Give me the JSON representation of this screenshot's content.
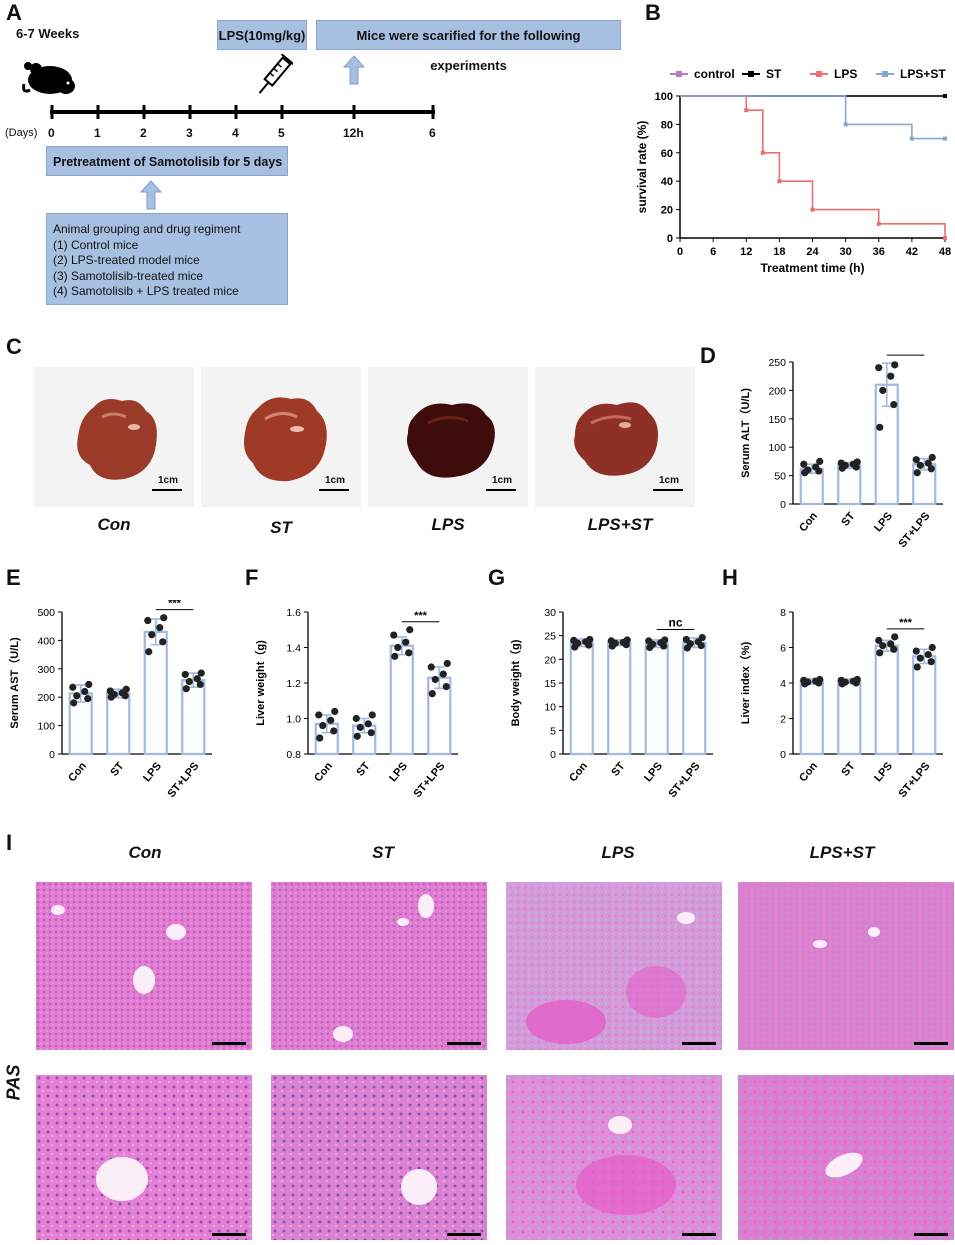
{
  "panels": {
    "A": "A",
    "B": "B",
    "C": "C",
    "D": "D",
    "E": "E",
    "F": "F",
    "G": "G",
    "H": "H",
    "I": "I"
  },
  "timeline": {
    "age": "6-7 Weeks",
    "lps_box": "LPS(10mg/kg)",
    "sacrifice_box": "Mice were scarified for the following experiments",
    "days_label": "(Days)",
    "ticks": [
      "0",
      "1",
      "2",
      "3",
      "4",
      "5",
      "12h",
      "6"
    ],
    "pretreatment": "Pretreatment of Samotolisib for 5 days",
    "grouping_title": "Animal grouping and drug regiment",
    "groups": [
      "(1)   Control mice",
      "(2)   LPS-treated model mice",
      "(3)   Samotolisib-treated mice",
      "(4)   Samotolisib + LPS treated mice"
    ]
  },
  "survival": {
    "legend": [
      "control",
      "ST",
      "LPS",
      "LPS+ST"
    ],
    "ylabel": "survival rate (%)",
    "xlabel": "Treatment time (h)",
    "yticks": [
      "0",
      "20",
      "40",
      "60",
      "80",
      "100"
    ],
    "xticks": [
      "0",
      "6",
      "12",
      "18",
      "24",
      "30",
      "36",
      "42",
      "48"
    ]
  },
  "liver_photos": {
    "labels": [
      "Con",
      "ST",
      "LPS",
      "LPS+ST"
    ],
    "scale": "1cm"
  },
  "pas": {
    "labels": [
      "Con",
      "ST",
      "LPS",
      "LPS+ST"
    ],
    "stain": "PAS"
  },
  "colors": {
    "box_blue": "#a7bfe0",
    "bar_blue": "#9fb9e0",
    "control": "#b37cc9",
    "st": "#000000",
    "lps": "#ec6f6f",
    "lps_st": "#86a7d3",
    "pas_pink": "#e27ad1"
  },
  "chart_data": [
    {
      "type": "line",
      "title": "",
      "xlabel": "Treatment time (h)",
      "ylabel": "survival rate (%)",
      "xlim": [
        0,
        48
      ],
      "ylim": [
        0,
        100
      ],
      "legend_position": "top",
      "series": [
        {
          "name": "control",
          "step": true,
          "x": [
            0,
            48
          ],
          "y": [
            100,
            100
          ]
        },
        {
          "name": "ST",
          "step": true,
          "x": [
            0,
            48
          ],
          "y": [
            100,
            100
          ]
        },
        {
          "name": "LPS",
          "step": true,
          "x": [
            0,
            12,
            15,
            18,
            24,
            36,
            48
          ],
          "y": [
            100,
            90,
            60,
            40,
            20,
            10,
            0
          ]
        },
        {
          "name": "LPS+ST",
          "step": true,
          "x": [
            0,
            30,
            42,
            48
          ],
          "y": [
            100,
            80,
            70,
            70
          ]
        }
      ]
    },
    {
      "type": "bar",
      "ylabel": "Serum ALT（U/L)",
      "ylim": [
        0,
        250
      ],
      "yticks": [
        "0",
        "50",
        "100",
        "150",
        "200",
        "250"
      ],
      "categories": [
        "Con",
        "ST",
        "LPS",
        "ST+LPS"
      ],
      "values": [
        62,
        68,
        210,
        70
      ],
      "errors": [
        8,
        5,
        38,
        10
      ],
      "points": [
        [
          55,
          58,
          60,
          65,
          70,
          75
        ],
        [
          63,
          65,
          68,
          70,
          72,
          74
        ],
        [
          135,
          175,
          200,
          225,
          240,
          245
        ],
        [
          55,
          62,
          68,
          72,
          78,
          82
        ]
      ],
      "significance": {
        "between": [
          2,
          3
        ],
        "label": "***"
      }
    },
    {
      "type": "bar",
      "ylabel": "Serum AST（U/L)",
      "ylim": [
        0,
        500
      ],
      "yticks": [
        "0",
        "100",
        "200",
        "300",
        "400",
        "500"
      ],
      "categories": [
        "Con",
        "ST",
        "LPS",
        "ST+LPS"
      ],
      "values": [
        213,
        213,
        430,
        260
      ],
      "errors": [
        30,
        15,
        45,
        25
      ],
      "points": [
        [
          180,
          195,
          205,
          220,
          235,
          245
        ],
        [
          200,
          205,
          210,
          215,
          222,
          228
        ],
        [
          360,
          395,
          420,
          445,
          470,
          480
        ],
        [
          230,
          245,
          255,
          265,
          280,
          285
        ]
      ],
      "significance": {
        "between": [
          2,
          3
        ],
        "label": "***"
      }
    },
    {
      "type": "bar",
      "ylabel": "Liver weight（g)",
      "ylim": [
        0.8,
        1.6
      ],
      "yticks": [
        "0.8",
        "1.0",
        "1.2",
        "1.4",
        "1.6"
      ],
      "categories": [
        "Con",
        "ST",
        "LPS",
        "ST+LPS"
      ],
      "values": [
        0.97,
        0.96,
        1.41,
        1.23
      ],
      "errors": [
        0.05,
        0.04,
        0.05,
        0.06
      ],
      "points": [
        [
          0.89,
          0.93,
          0.96,
          0.99,
          1.02,
          1.04
        ],
        [
          0.9,
          0.92,
          0.95,
          0.97,
          1.0,
          1.02
        ],
        [
          1.35,
          1.37,
          1.4,
          1.43,
          1.47,
          1.5
        ],
        [
          1.14,
          1.18,
          1.22,
          1.25,
          1.29,
          1.31
        ]
      ],
      "significance": {
        "between": [
          2,
          3
        ],
        "label": "***"
      }
    },
    {
      "type": "bar",
      "ylabel": "Body weight（g)",
      "ylim": [
        0,
        30
      ],
      "yticks": [
        "0",
        "5",
        "10",
        "15",
        "20",
        "25",
        "30"
      ],
      "categories": [
        "Con",
        "ST",
        "LPS",
        "ST+LPS"
      ],
      "values": [
        23.5,
        23.5,
        23.3,
        23.5
      ],
      "errors": [
        0.8,
        0.6,
        0.8,
        1.0
      ],
      "points": [
        [
          22.6,
          23.0,
          23.4,
          23.7,
          24.0,
          24.2
        ],
        [
          22.8,
          23.1,
          23.4,
          23.6,
          23.9,
          24.1
        ],
        [
          22.5,
          22.8,
          23.2,
          23.5,
          23.9,
          24.1
        ],
        [
          22.4,
          22.9,
          23.3,
          23.7,
          24.2,
          24.6
        ]
      ],
      "significance": {
        "between": [
          2,
          3
        ],
        "label": "nc"
      }
    },
    {
      "type": "bar",
      "ylabel": "Liver index（%)",
      "ylim": [
        0,
        8
      ],
      "yticks": [
        "0",
        "2",
        "4",
        "6",
        "8"
      ],
      "categories": [
        "Con",
        "ST",
        "LPS",
        "ST+LPS"
      ],
      "values": [
        4.1,
        4.1,
        6.1,
        5.5
      ],
      "errors": [
        0.15,
        0.12,
        0.3,
        0.4
      ],
      "points": [
        [
          3.95,
          4.0,
          4.05,
          4.1,
          4.15,
          4.2
        ],
        [
          3.95,
          4.0,
          4.05,
          4.1,
          4.15,
          4.2
        ],
        [
          5.7,
          5.9,
          6.1,
          6.2,
          6.4,
          6.6
        ],
        [
          4.9,
          5.2,
          5.4,
          5.6,
          5.8,
          6.0
        ]
      ],
      "significance": {
        "between": [
          2,
          3
        ],
        "label": "***"
      }
    }
  ]
}
